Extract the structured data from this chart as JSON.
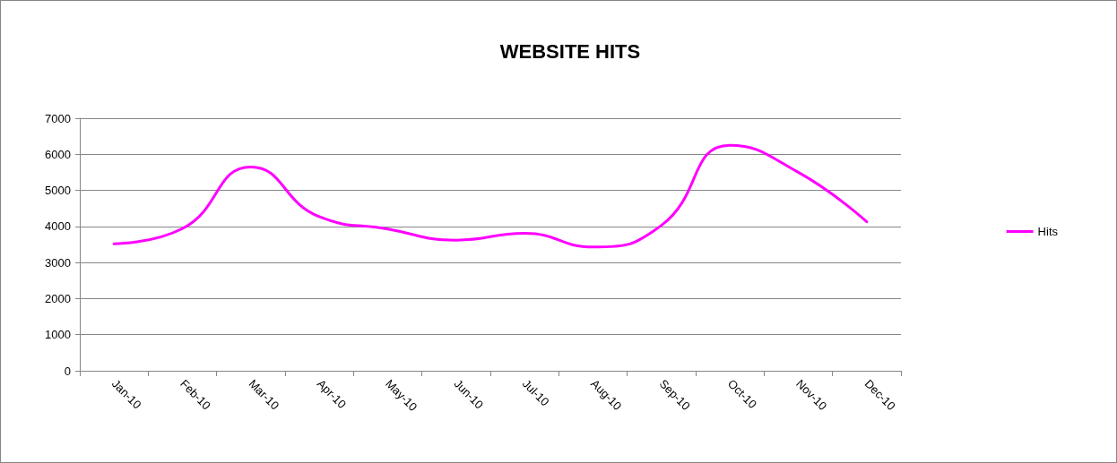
{
  "chart_data": {
    "type": "line",
    "title": "WEBSITE HITS",
    "categories": [
      "Jan-10",
      "Feb-10",
      "Mar-10",
      "Apr-10",
      "May-10",
      "Jun-10",
      "Jul-10",
      "Aug-10",
      "Sep-10",
      "Oct-10",
      "Nov-10",
      "Dec-10"
    ],
    "series": [
      {
        "name": "Hits",
        "color": "#ff00ff",
        "values": [
          3520,
          3940,
          5650,
          4270,
          3930,
          3620,
          3810,
          3430,
          4030,
          6250,
          5500,
          4130
        ]
      }
    ],
    "ylim": [
      0,
      7000
    ],
    "yticks": [
      0,
      1000,
      2000,
      3000,
      4000,
      5000,
      6000,
      7000
    ],
    "grid": "y",
    "legend": "right",
    "marker": "none",
    "line_style": "solid"
  }
}
